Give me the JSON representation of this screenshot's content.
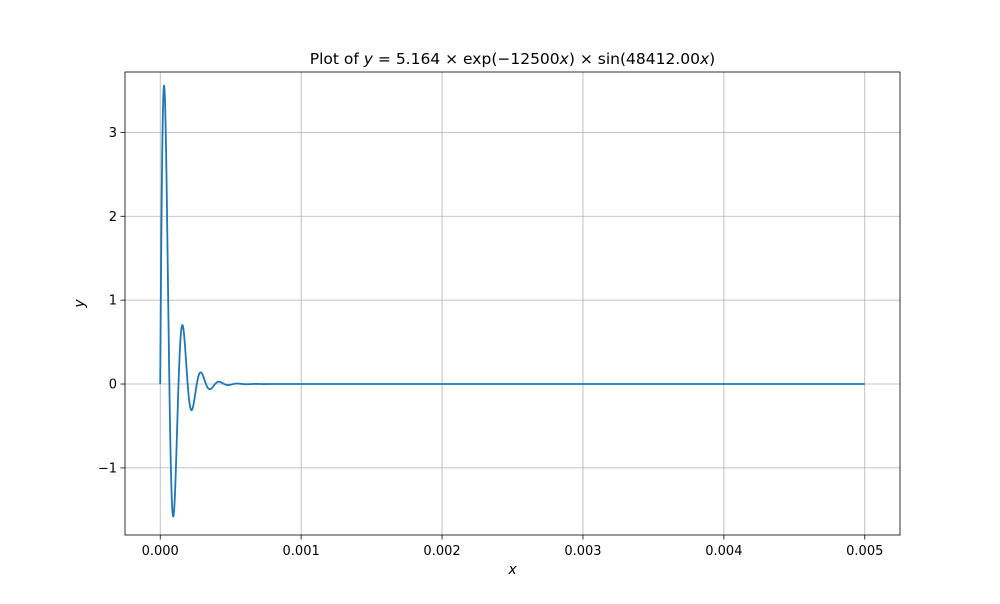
{
  "chart_data": {
    "type": "line",
    "title": {
      "prefix": "Plot of ",
      "var_y": "y",
      "equals": " = 5.164 × exp(−12500",
      "var_x1": "x",
      "mid": ") × sin(48412.00",
      "var_x2": "x",
      "suffix": ")"
    },
    "xlabel": "x",
    "ylabel": "y",
    "xlim": [
      -0.00025,
      0.00525
    ],
    "ylim": [
      -1.8,
      3.72
    ],
    "xticks": [
      0.0,
      0.001,
      0.002,
      0.003,
      0.004,
      0.005
    ],
    "xtick_labels": [
      "0.000",
      "0.001",
      "0.002",
      "0.003",
      "0.004",
      "0.005"
    ],
    "yticks": [
      -1,
      0,
      1,
      2,
      3
    ],
    "ytick_labels": [
      "−1",
      "0",
      "1",
      "2",
      "3"
    ],
    "grid": true,
    "legend": null,
    "series": [
      {
        "function": {
          "amplitude": 5.164,
          "decay": 12500,
          "frequency": 48412.0
        },
        "x_range": [
          0.0,
          0.005
        ],
        "color": "#1f77b4"
      }
    ]
  },
  "colors": {
    "line": "#1f77b4",
    "grid": "#b0b0b0",
    "axes": "#000000",
    "background": "#ffffff"
  }
}
